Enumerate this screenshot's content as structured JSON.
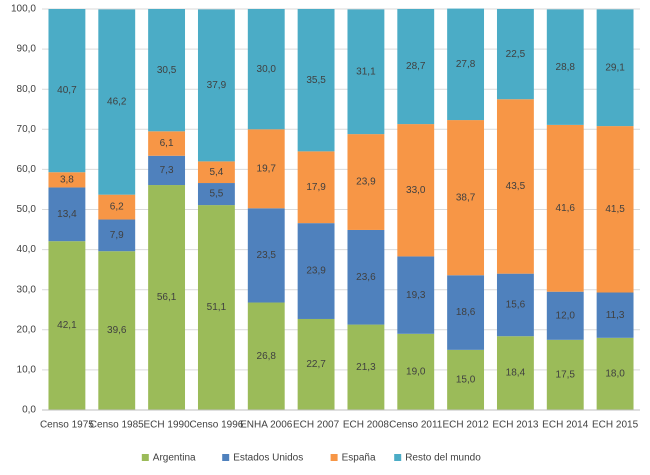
{
  "chart_data": {
    "type": "stacked-bar",
    "categories": [
      "Censo 1975",
      "Censo 1985",
      "ECH 1990",
      "Censo 1996",
      "ENHA 2006",
      "ECH 2007",
      "ECH 2008",
      "Censo 2011",
      "ECH 2012",
      "ECH 2013",
      "ECH 2014",
      "ECH 2015"
    ],
    "series": [
      {
        "name": "Argentina",
        "color": "#9bbb59",
        "values": [
          42.1,
          39.6,
          56.1,
          51.1,
          26.8,
          22.7,
          21.3,
          19.0,
          15.0,
          18.4,
          17.5,
          18.0
        ],
        "value_labels": [
          "42,1",
          "39,6",
          "56,1",
          "51,1",
          "26,8",
          "22,7",
          "21,3",
          "19,0",
          "15,0",
          "18,4",
          "17,5",
          "18,0"
        ]
      },
      {
        "name": "Estados Unidos",
        "color": "#4f81bd",
        "values": [
          13.4,
          7.9,
          7.3,
          5.5,
          23.5,
          23.9,
          23.6,
          19.3,
          18.6,
          15.6,
          12.0,
          11.3
        ],
        "value_labels": [
          "13,4",
          "7,9",
          "7,3",
          "5,5",
          "23,5",
          "23,9",
          "23,6",
          "19,3",
          "18,6",
          "15,6",
          "12,0",
          "11,3"
        ]
      },
      {
        "name": "España",
        "color": "#f79646",
        "values": [
          3.8,
          6.2,
          6.1,
          5.4,
          19.7,
          17.9,
          23.9,
          33.0,
          38.7,
          43.5,
          41.6,
          41.5
        ],
        "value_labels": [
          "3,8",
          "6,2",
          "6,1",
          "5,4",
          "19,7",
          "17,9",
          "23,9",
          "33,0",
          "38,7",
          "43,5",
          "41,6",
          "41,5"
        ]
      },
      {
        "name": "Resto del mundo",
        "color": "#4bacc6",
        "values": [
          40.7,
          46.2,
          30.5,
          37.9,
          30.0,
          35.5,
          31.1,
          28.7,
          27.8,
          22.5,
          28.8,
          29.1
        ],
        "value_labels": [
          "40,7",
          "46,2",
          "30,5",
          "37,9",
          "30,0",
          "35,5",
          "31,1",
          "28,7",
          "27,8",
          "22,5",
          "28,8",
          "29,1"
        ]
      }
    ],
    "ylim": [
      0,
      100
    ],
    "yticks": [
      {
        "value": 0,
        "label": "0,0"
      },
      {
        "value": 10,
        "label": "10,0"
      },
      {
        "value": 20,
        "label": "20,0"
      },
      {
        "value": 30,
        "label": "30,0"
      },
      {
        "value": 40,
        "label": "40,0"
      },
      {
        "value": 50,
        "label": "50,0"
      },
      {
        "value": 60,
        "label": "60,0"
      },
      {
        "value": 70,
        "label": "70,0"
      },
      {
        "value": 80,
        "label": "80,0"
      },
      {
        "value": 90,
        "label": "90,0"
      },
      {
        "value": 100,
        "label": "100,0"
      }
    ],
    "grid": true
  }
}
